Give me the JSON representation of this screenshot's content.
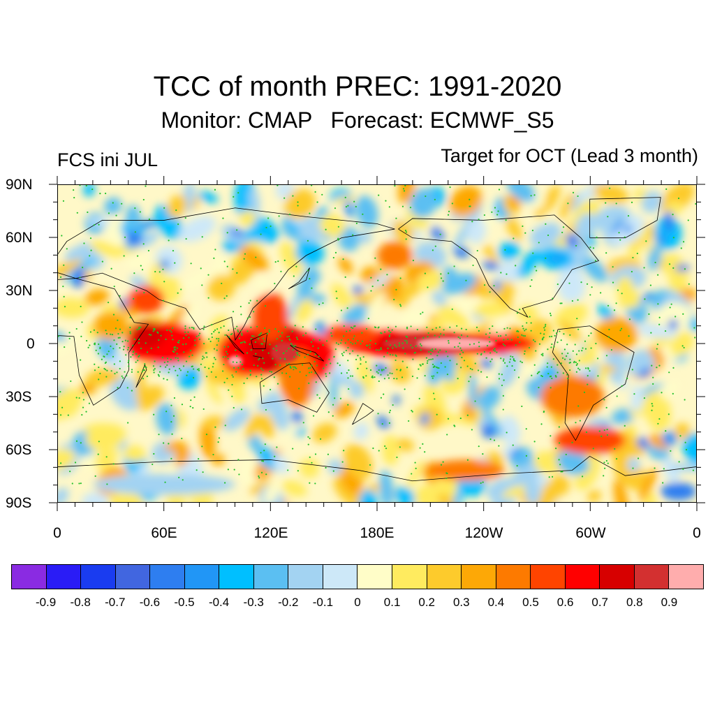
{
  "title": "TCC of month PREC: 1991-2020",
  "subtitle": "Monitor: CMAP   Forecast: ECMWF_S5",
  "left_label": "FCS ini JUL",
  "right_label": "Target for OCT (Lead 3 month)",
  "map": {
    "projection": "cylindrical equidistant, centered 180E",
    "lat_labels": [
      "90N",
      "60N",
      "30N",
      "0",
      "30S",
      "60S",
      "90S"
    ],
    "lon_labels": [
      "0",
      "60E",
      "120E",
      "180E",
      "120W",
      "60W",
      "0"
    ],
    "lat_range": [
      -90,
      90
    ],
    "lon_range": [
      0,
      360
    ],
    "stippling": "green dots mark significant correlation",
    "colors": {
      "stipple": "#22c02a",
      "coastline": "#000000",
      "background_level": "#fff8c8"
    }
  },
  "colorbar": {
    "colors": [
      "#8a2be2",
      "#2a1cf6",
      "#1a3cf0",
      "#4166e0",
      "#2e7ef0",
      "#2196f6",
      "#00bfff",
      "#5bbff2",
      "#a3d3f2",
      "#cde8f8",
      "#fffdc8",
      "#ffeb5f",
      "#fdcb2c",
      "#fda806",
      "#fd7a00",
      "#ff4400",
      "#ff0000",
      "#d70000",
      "#d33030",
      "#ffadad"
    ],
    "labels": [
      "-0.9",
      "-0.8",
      "-0.7",
      "-0.6",
      "-0.5",
      "-0.4",
      "-0.3",
      "-0.2",
      "-0.1",
      "0",
      "0.1",
      "0.2",
      "0.3",
      "0.4",
      "0.5",
      "0.6",
      "0.7",
      "0.8",
      "0.9"
    ]
  }
}
